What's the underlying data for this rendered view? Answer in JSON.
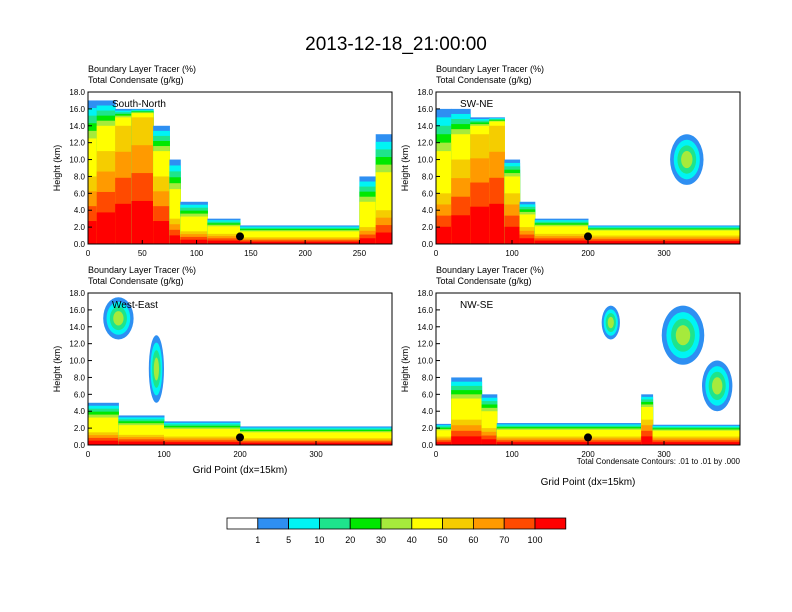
{
  "title": "2013-12-18_21:00:00",
  "colors": {
    "bins": [
      "#ffffff",
      "#2e8ff2",
      "#00f4f4",
      "#1ee48c",
      "#00e800",
      "#a6ea3c",
      "#ffff00",
      "#f5cd00",
      "#ff9a00",
      "#ff4a00",
      "#ff0000"
    ]
  },
  "colorbar": {
    "labels": [
      "1",
      "5",
      "10",
      "20",
      "30",
      "40",
      "50",
      "60",
      "70",
      "100"
    ]
  },
  "contour_note": "Total Condensate Contours: .01 to .01 by .000",
  "chart_data": [
    {
      "type": "heatmap",
      "name": "South-North",
      "subtitle_1": "Boundary Layer Tracer    (%)",
      "subtitle_2": "Total Condensate   (g/kg)",
      "ylabel": "Height (km)",
      "xlabel": "",
      "xlim": [
        0,
        280
      ],
      "ylim": [
        0,
        18
      ],
      "xticks": [
        0,
        50,
        100,
        150,
        200,
        250
      ],
      "yticks": [
        "0.0",
        "2.0",
        "4.0",
        "6.0",
        "8.0",
        "10.0",
        "12.0",
        "14.0",
        "16.0",
        "18.0"
      ],
      "marker_x": 140,
      "columns": [
        {
          "x": [
            0,
            8
          ],
          "top": 17,
          "core": 8
        },
        {
          "x": [
            8,
            25
          ],
          "top": 17,
          "core": 11
        },
        {
          "x": [
            25,
            40
          ],
          "top": 16,
          "core": 14
        },
        {
          "x": [
            40,
            60
          ],
          "top": 16,
          "core": 15
        },
        {
          "x": [
            60,
            75
          ],
          "top": 14,
          "core": 8
        },
        {
          "x": [
            75,
            85
          ],
          "top": 10,
          "core": 3
        },
        {
          "x": [
            85,
            110
          ],
          "top": 5,
          "core": 1.5
        },
        {
          "x": [
            110,
            140
          ],
          "top": 3,
          "core": 1.2
        },
        {
          "x": [
            140,
            250
          ],
          "top": 2.2,
          "core": 0.8
        },
        {
          "x": [
            250,
            265
          ],
          "top": 8,
          "core": 2
        },
        {
          "x": [
            265,
            280
          ],
          "top": 13,
          "core": 4
        }
      ]
    },
    {
      "type": "heatmap",
      "name": "SW-NE",
      "subtitle_1": "Boundary Layer Tracer    (%)",
      "subtitle_2": "Total Condensate   (g/kg)",
      "ylabel": "Height (km)",
      "xlabel": "",
      "xlim": [
        0,
        400
      ],
      "ylim": [
        0,
        18
      ],
      "xticks": [
        0,
        100,
        200,
        300
      ],
      "yticks": [
        "0.0",
        "2.0",
        "4.0",
        "6.0",
        "8.0",
        "10.0",
        "12.0",
        "14.0",
        "16.0",
        "18.0"
      ],
      "marker_x": 200,
      "columns": [
        {
          "x": [
            0,
            20
          ],
          "top": 16,
          "core": 6
        },
        {
          "x": [
            20,
            45
          ],
          "top": 16,
          "core": 10
        },
        {
          "x": [
            45,
            70
          ],
          "top": 15,
          "core": 13
        },
        {
          "x": [
            70,
            90
          ],
          "top": 15,
          "core": 14
        },
        {
          "x": [
            90,
            110
          ],
          "top": 10,
          "core": 6
        },
        {
          "x": [
            110,
            130
          ],
          "top": 5,
          "core": 2
        },
        {
          "x": [
            130,
            200
          ],
          "top": 3,
          "core": 1.2
        },
        {
          "x": [
            200,
            400
          ],
          "top": 2.2,
          "core": 1
        }
      ],
      "blobs": [
        {
          "x": 330,
          "y": 10,
          "rx": 22,
          "ry": 3
        }
      ]
    },
    {
      "type": "heatmap",
      "name": "West-East",
      "subtitle_1": "Boundary Layer Tracer    (%)",
      "subtitle_2": "Total Condensate   (g/kg)",
      "ylabel": "Height (km)",
      "xlabel": "Grid Point (dx=15km)",
      "xlim": [
        0,
        400
      ],
      "ylim": [
        0,
        18
      ],
      "xticks": [
        0,
        100,
        200,
        300
      ],
      "yticks": [
        "0.0",
        "2.0",
        "4.0",
        "6.0",
        "8.0",
        "10.0",
        "12.0",
        "14.0",
        "16.0",
        "18.0"
      ],
      "marker_x": 200,
      "columns": [
        {
          "x": [
            0,
            40
          ],
          "top": 5,
          "core": 1.5
        },
        {
          "x": [
            40,
            100
          ],
          "top": 3.5,
          "core": 1.2
        },
        {
          "x": [
            100,
            200
          ],
          "top": 2.8,
          "core": 1
        },
        {
          "x": [
            200,
            400
          ],
          "top": 2.2,
          "core": 0.8
        }
      ],
      "blobs": [
        {
          "x": 40,
          "y": 15,
          "rx": 20,
          "ry": 2.5
        },
        {
          "x": 90,
          "y": 9,
          "rx": 10,
          "ry": 4
        }
      ]
    },
    {
      "type": "heatmap",
      "name": "NW-SE",
      "subtitle_1": "Boundary Layer Tracer    (%)",
      "subtitle_2": "Total Condensate   (g/kg)",
      "ylabel": "Height (km)",
      "xlabel": "Grid Point (dx=15km)",
      "xlim": [
        0,
        400
      ],
      "ylim": [
        0,
        18
      ],
      "xticks": [
        0,
        100,
        200,
        300
      ],
      "yticks": [
        "0.0",
        "2.0",
        "4.0",
        "6.0",
        "8.0",
        "10.0",
        "12.0",
        "14.0",
        "16.0",
        "18.0"
      ],
      "marker_x": 200,
      "columns": [
        {
          "x": [
            0,
            20
          ],
          "top": 2.5,
          "core": 1
        },
        {
          "x": [
            20,
            60
          ],
          "top": 8,
          "core": 3
        },
        {
          "x": [
            60,
            80
          ],
          "top": 6,
          "core": 2
        },
        {
          "x": [
            80,
            270
          ],
          "top": 2.6,
          "core": 1
        },
        {
          "x": [
            270,
            285
          ],
          "top": 6,
          "core": 3
        },
        {
          "x": [
            285,
            400
          ],
          "top": 2.4,
          "core": 1
        }
      ],
      "blobs": [
        {
          "x": 325,
          "y": 13,
          "rx": 28,
          "ry": 3.5
        },
        {
          "x": 370,
          "y": 7,
          "rx": 20,
          "ry": 3
        },
        {
          "x": 230,
          "y": 14.5,
          "rx": 12,
          "ry": 2
        }
      ]
    }
  ]
}
